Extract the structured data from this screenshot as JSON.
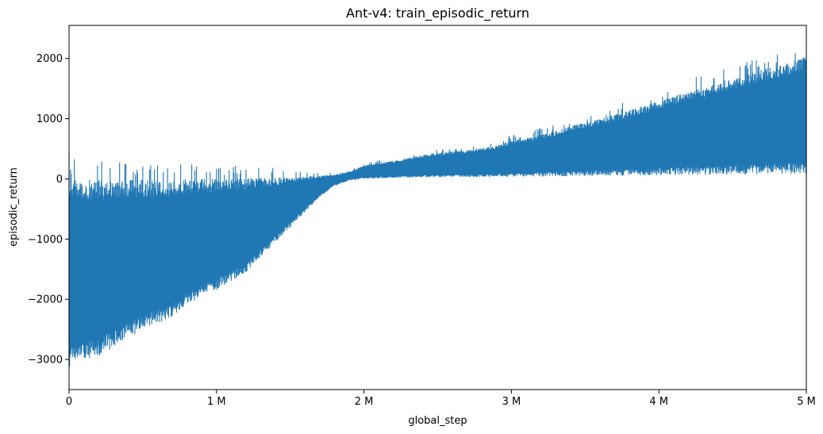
{
  "chart_data": {
    "type": "line",
    "title": "Ant-v4: train_episodic_return",
    "xlabel": "global_step",
    "ylabel": "episodic_return",
    "xlim": [
      0,
      5000000
    ],
    "ylim": [
      -3500,
      2550
    ],
    "x_ticks": [
      0,
      1000000,
      2000000,
      3000000,
      4000000,
      5000000
    ],
    "x_tick_labels": [
      "0",
      "1 M",
      "2 M",
      "3 M",
      "4 M",
      "5 M"
    ],
    "y_ticks": [
      -3000,
      -2000,
      -1000,
      0,
      1000,
      2000
    ],
    "y_tick_labels": [
      "−3000",
      "−2000",
      "−1000",
      "0",
      "1000",
      "2000"
    ],
    "grid": false,
    "legend": "none",
    "color": "#1f77b4",
    "series": [
      {
        "x": [
          0,
          100000,
          200000,
          300000,
          400000,
          500000,
          600000,
          700000,
          800000,
          900000,
          1000000,
          1100000,
          1200000,
          1300000,
          1400000,
          1500000,
          1600000,
          1700000,
          1800000,
          1900000,
          2000000,
          2100000,
          2200000,
          2300000,
          2400000,
          2500000,
          2600000,
          2700000,
          2800000,
          2900000,
          3000000,
          3100000,
          3200000,
          3300000,
          3400000,
          3500000,
          3600000,
          3700000,
          3800000,
          3900000,
          4000000,
          4100000,
          4200000,
          4300000,
          4400000,
          4500000,
          4600000,
          4700000,
          4800000,
          4900000,
          5000000
        ],
        "upper": [
          -20,
          -20,
          -15,
          -15,
          -15,
          -10,
          -10,
          -10,
          -5,
          0,
          0,
          5,
          10,
          15,
          20,
          30,
          40,
          60,
          70,
          130,
          220,
          270,
          300,
          350,
          400,
          430,
          460,
          480,
          520,
          560,
          640,
          680,
          740,
          800,
          880,
          940,
          1000,
          1070,
          1150,
          1220,
          1300,
          1380,
          1450,
          1520,
          1600,
          1680,
          1750,
          1820,
          1880,
          1950,
          2050
        ],
        "lower": [
          -3150,
          -3000,
          -2950,
          -2800,
          -2650,
          -2500,
          -2400,
          -2300,
          -2100,
          -1950,
          -1850,
          -1700,
          -1550,
          -1300,
          -1050,
          -800,
          -550,
          -300,
          -120,
          -30,
          0,
          10,
          15,
          20,
          25,
          25,
          30,
          30,
          30,
          35,
          35,
          40,
          40,
          45,
          45,
          50,
          50,
          55,
          55,
          60,
          60,
          65,
          65,
          70,
          70,
          75,
          75,
          80,
          80,
          85,
          90
        ],
        "max": 2290,
        "min": -3260
      }
    ]
  }
}
